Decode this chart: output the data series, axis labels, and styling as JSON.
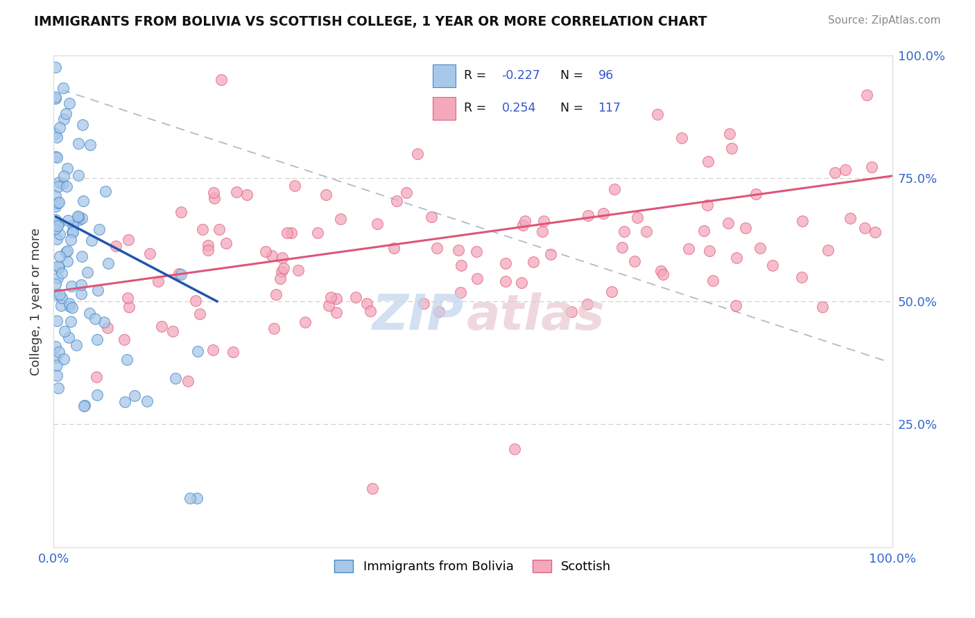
{
  "title": "IMMIGRANTS FROM BOLIVIA VS SCOTTISH COLLEGE, 1 YEAR OR MORE CORRELATION CHART",
  "source_text": "Source: ZipAtlas.com",
  "ylabel": "College, 1 year or more",
  "color_blue": "#A8C8E8",
  "color_pink": "#F4A8BC",
  "color_blue_edge": "#4488CC",
  "color_pink_edge": "#E06080",
  "color_blue_line": "#2255AA",
  "color_pink_line": "#DD5577",
  "color_dashed": "#AABBCC",
  "watermark_zip_color": "#C0D4EC",
  "watermark_atlas_color": "#E8C8D0",
  "ytick_right": [
    "25.0%",
    "50.0%",
    "75.0%",
    "100.0%"
  ],
  "ytick_vals": [
    0.25,
    0.5,
    0.75,
    1.0
  ],
  "xtick_labels": [
    "0.0%",
    "100.0%"
  ],
  "xtick_vals": [
    0.0,
    1.0
  ]
}
